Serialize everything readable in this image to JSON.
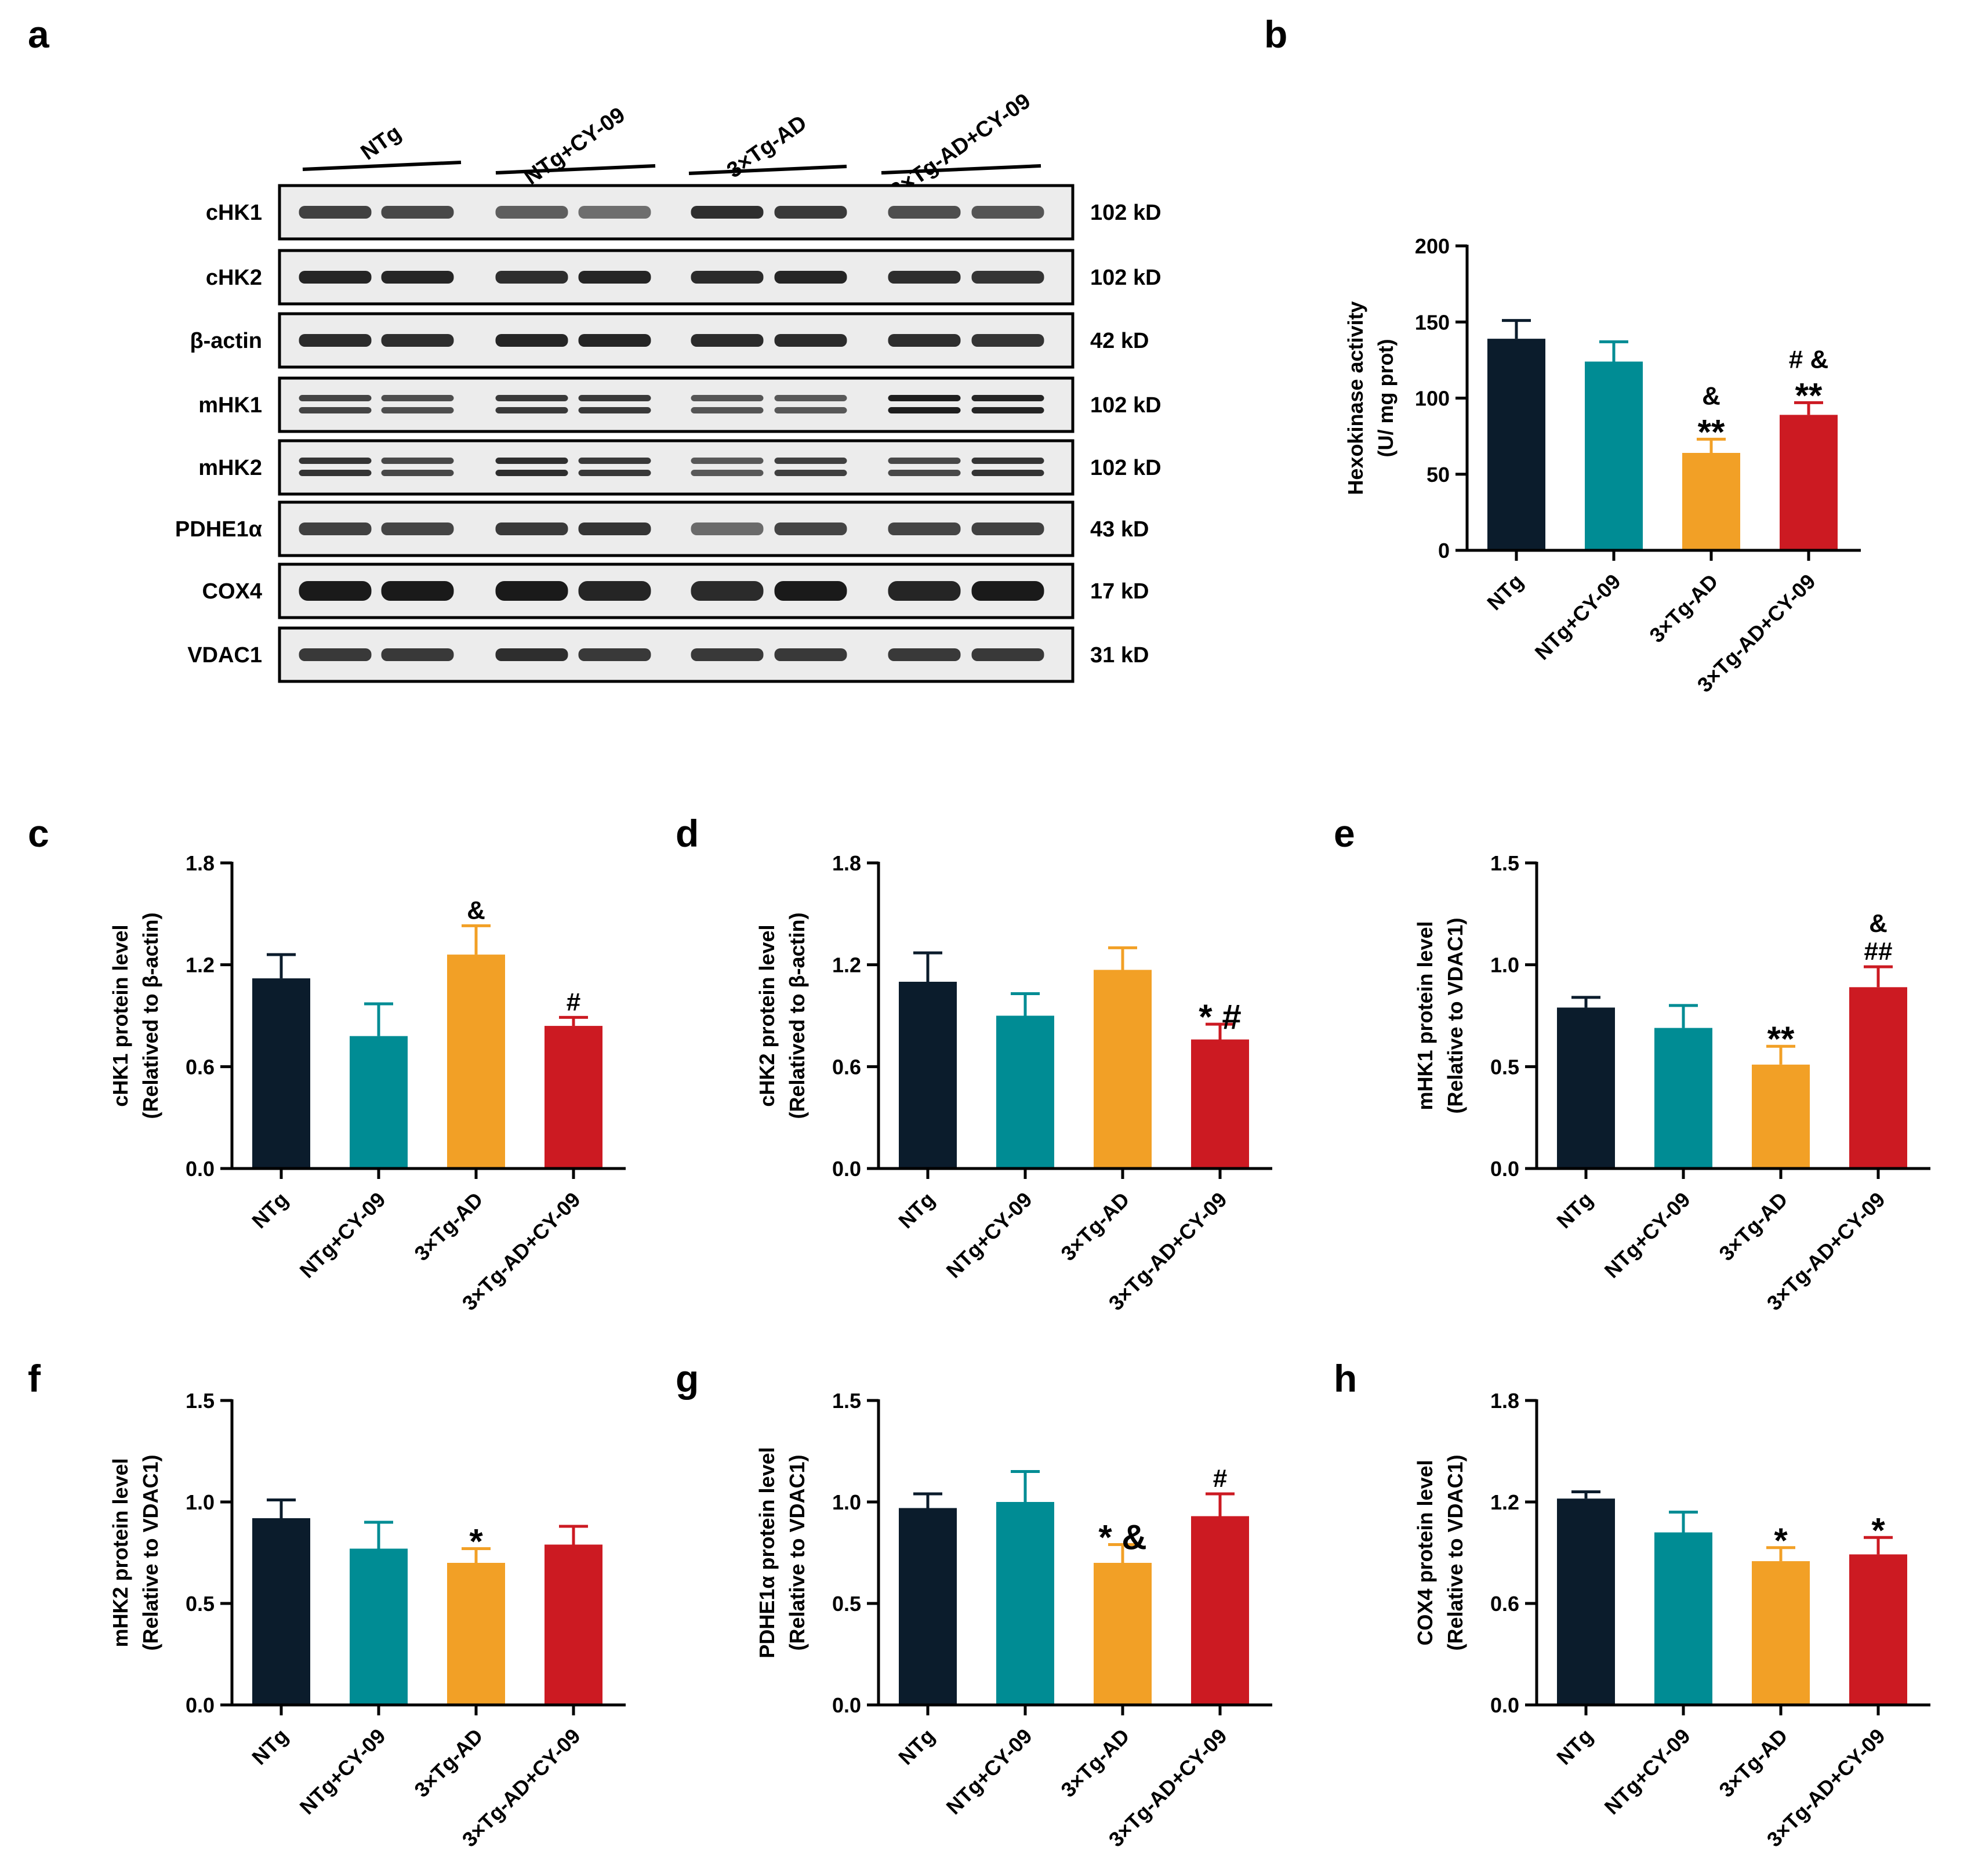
{
  "colors": {
    "series": [
      "#0b1c2c",
      "#008c94",
      "#f2a026",
      "#cc1a22"
    ],
    "ink": "#000000",
    "blot_background": "#ececec",
    "band": "#1a1a1a"
  },
  "western_blot": {
    "panel_letter": "a",
    "groups": [
      "NTg",
      "NTg+CY-09",
      "3×Tg-AD",
      "3×Tg-AD+CY-09"
    ],
    "rows": [
      {
        "label": "cHK1",
        "size": "102 kD",
        "intensities": [
          0.82,
          0.78,
          0.68,
          0.6,
          0.9,
          0.85,
          0.75,
          0.72
        ],
        "double": false
      },
      {
        "label": "cHK2",
        "size": "102 kD",
        "intensities": [
          0.95,
          0.95,
          0.9,
          0.95,
          0.92,
          0.95,
          0.9,
          0.88
        ],
        "double": false
      },
      {
        "label": "β-actin",
        "size": "42 kD",
        "intensities": [
          0.92,
          0.9,
          0.95,
          0.95,
          0.92,
          0.92,
          0.9,
          0.88
        ],
        "double": false
      },
      {
        "label": "mHK1",
        "size": "102 kD",
        "intensities": [
          0.8,
          0.75,
          0.85,
          0.85,
          0.72,
          0.7,
          0.98,
          0.95
        ],
        "double": true
      },
      {
        "label": "mHK2",
        "size": "102 kD",
        "intensities": [
          0.88,
          0.78,
          0.9,
          0.85,
          0.7,
          0.82,
          0.78,
          0.88
        ],
        "double": true
      },
      {
        "label": "PDHE1α",
        "size": "43 kD",
        "intensities": [
          0.82,
          0.8,
          0.85,
          0.88,
          0.62,
          0.8,
          0.8,
          0.82
        ],
        "double": false
      },
      {
        "label": "COX4",
        "size": "17 kD",
        "intensities": [
          1.0,
          1.0,
          1.0,
          0.95,
          0.92,
          1.0,
          0.95,
          1.0
        ],
        "double": false
      },
      {
        "label": "VDAC1",
        "size": "31 kD",
        "intensities": [
          0.85,
          0.85,
          0.9,
          0.85,
          0.85,
          0.85,
          0.85,
          0.85
        ],
        "double": false
      }
    ]
  },
  "chart_data": [
    {
      "id": "b",
      "type": "bar",
      "categories": [
        "NTg",
        "NTg+CY-09",
        "3×Tg-AD",
        "3×Tg-AD+CY-09"
      ],
      "values": [
        139,
        124,
        64,
        89
      ],
      "errors": [
        12,
        13,
        9,
        8
      ],
      "annotations": [
        [
          "",
          ""
        ],
        [
          "",
          ""
        ],
        [
          "&",
          "**"
        ],
        [
          "# &",
          "**"
        ]
      ],
      "ylabel_lines": [
        "Hexokinase activity",
        "(U/ mg prot)"
      ],
      "ylim": [
        0,
        200
      ],
      "yticks": [
        "0",
        "50",
        "100",
        "150",
        "200"
      ]
    },
    {
      "id": "c",
      "type": "bar",
      "categories": [
        "NTg",
        "NTg+CY-09",
        "3×Tg-AD",
        "3×Tg-AD+CY-09"
      ],
      "values": [
        1.12,
        0.78,
        1.26,
        0.84
      ],
      "errors": [
        0.14,
        0.19,
        0.17,
        0.05
      ],
      "annotations": [
        [
          ""
        ],
        [
          ""
        ],
        [
          "&"
        ],
        [
          "#"
        ]
      ],
      "ylabel_lines": [
        "cHK1 protein level",
        "(Relatived to β-actin)"
      ],
      "ylim": [
        0,
        1.8
      ],
      "yticks": [
        "0.0",
        "0.6",
        "1.2",
        "1.8"
      ]
    },
    {
      "id": "d",
      "type": "bar",
      "categories": [
        "NTg",
        "NTg+CY-09",
        "3×Tg-AD",
        "3×Tg-AD+CY-09"
      ],
      "values": [
        1.1,
        0.9,
        1.17,
        0.76
      ],
      "errors": [
        0.17,
        0.13,
        0.13,
        0.09
      ],
      "annotations": [
        [
          ""
        ],
        [
          ""
        ],
        [
          ""
        ],
        [
          "* #"
        ]
      ],
      "ylabel_lines": [
        "cHK2 protein level",
        "(Relatived to β-actin)"
      ],
      "ylim": [
        0,
        1.8
      ],
      "yticks": [
        "0.0",
        "0.6",
        "1.2",
        "1.8"
      ]
    },
    {
      "id": "e",
      "type": "bar",
      "categories": [
        "NTg",
        "NTg+CY-09",
        "3×Tg-AD",
        "3×Tg-AD+CY-09"
      ],
      "values": [
        0.79,
        0.69,
        0.51,
        0.89
      ],
      "errors": [
        0.05,
        0.11,
        0.09,
        0.1
      ],
      "annotations": [
        [
          ""
        ],
        [
          ""
        ],
        [
          "**"
        ],
        [
          "&",
          "##"
        ]
      ],
      "ylabel_lines": [
        "mHK1 protein level",
        "(Relative to VDAC1)"
      ],
      "ylim": [
        0,
        1.5
      ],
      "yticks": [
        "0.0",
        "0.5",
        "1.0",
        "1.5"
      ]
    },
    {
      "id": "f",
      "type": "bar",
      "categories": [
        "NTg",
        "NTg+CY-09",
        "3×Tg-AD",
        "3×Tg-AD+CY-09"
      ],
      "values": [
        0.92,
        0.77,
        0.7,
        0.79
      ],
      "errors": [
        0.09,
        0.13,
        0.07,
        0.09
      ],
      "annotations": [
        [
          ""
        ],
        [
          ""
        ],
        [
          "*"
        ],
        [
          ""
        ]
      ],
      "ylabel_lines": [
        "mHK2 protein level",
        "(Relative to VDAC1)"
      ],
      "ylim": [
        0,
        1.5
      ],
      "yticks": [
        "0.0",
        "0.5",
        "1.0",
        "1.5"
      ]
    },
    {
      "id": "g",
      "type": "bar",
      "categories": [
        "NTg",
        "NTg+CY-09",
        "3×Tg-AD",
        "3×Tg-AD+CY-09"
      ],
      "values": [
        0.97,
        1.0,
        0.7,
        0.93
      ],
      "errors": [
        0.07,
        0.15,
        0.09,
        0.11
      ],
      "annotations": [
        [
          ""
        ],
        [
          ""
        ],
        [
          "* &"
        ],
        [
          "#"
        ]
      ],
      "ylabel_lines": [
        "PDHE1α protein level",
        "(Relative to VDAC1)"
      ],
      "ylim": [
        0,
        1.5
      ],
      "yticks": [
        "0.0",
        "0.5",
        "1.0",
        "1.5"
      ]
    },
    {
      "id": "h",
      "type": "bar",
      "categories": [
        "NTg",
        "NTg+CY-09",
        "3×Tg-AD",
        "3×Tg-AD+CY-09"
      ],
      "values": [
        1.22,
        1.02,
        0.85,
        0.89
      ],
      "errors": [
        0.04,
        0.12,
        0.08,
        0.1
      ],
      "annotations": [
        [
          ""
        ],
        [
          ""
        ],
        [
          "*"
        ],
        [
          "*"
        ]
      ],
      "ylabel_lines": [
        "COX4 protein level",
        "(Relative to VDAC1)"
      ],
      "ylim": [
        0,
        1.8
      ],
      "yticks": [
        "0.0",
        "0.6",
        "1.2",
        "1.8"
      ]
    }
  ]
}
